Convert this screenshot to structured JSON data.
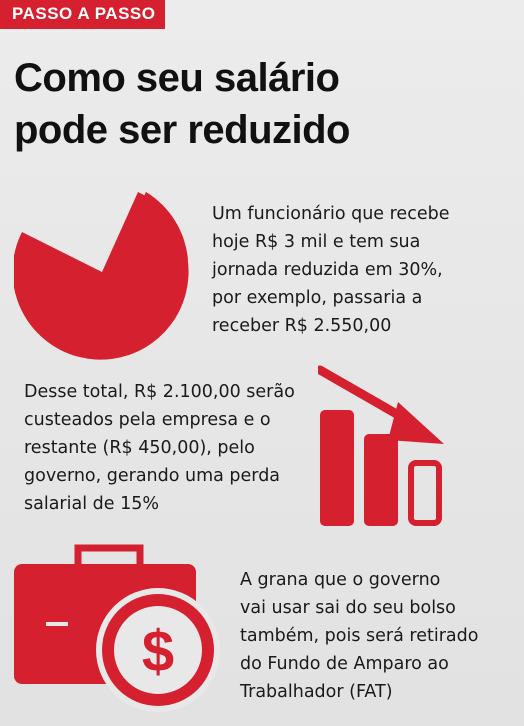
{
  "header": {
    "tag": "PASSO A PASSO"
  },
  "title": {
    "line1": "Como seu salário",
    "line2": "pode ser reduzido"
  },
  "steps": [
    {
      "icon": "pie-chart-icon",
      "lines": [
        "Um funcionário que recebe",
        "hoje R$ 3 mil e tem sua",
        "jornada reduzida em 30%,",
        "por exemplo, passaria a",
        "receber R$ 2.550,00"
      ]
    },
    {
      "icon": "declining-bars-icon",
      "lines": [
        "Desse total, R$ 2.100,00 serão",
        "custeados pela empresa e o",
        "restante (R$ 450,00), pelo",
        "governo, gerando uma perda",
        "salarial de 15%"
      ]
    },
    {
      "icon": "briefcase-dollar-icon",
      "lines": [
        "A grana que o governo",
        "vai usar sai do seu bolso",
        "também, pois será retirado",
        "do Fundo de Amparo ao",
        "Trabalhador (FAT)"
      ],
      "symbol": "$"
    }
  ],
  "colors": {
    "accent": "#d4202f",
    "text": "#1a1a1a",
    "background": "#e8e8e8"
  }
}
